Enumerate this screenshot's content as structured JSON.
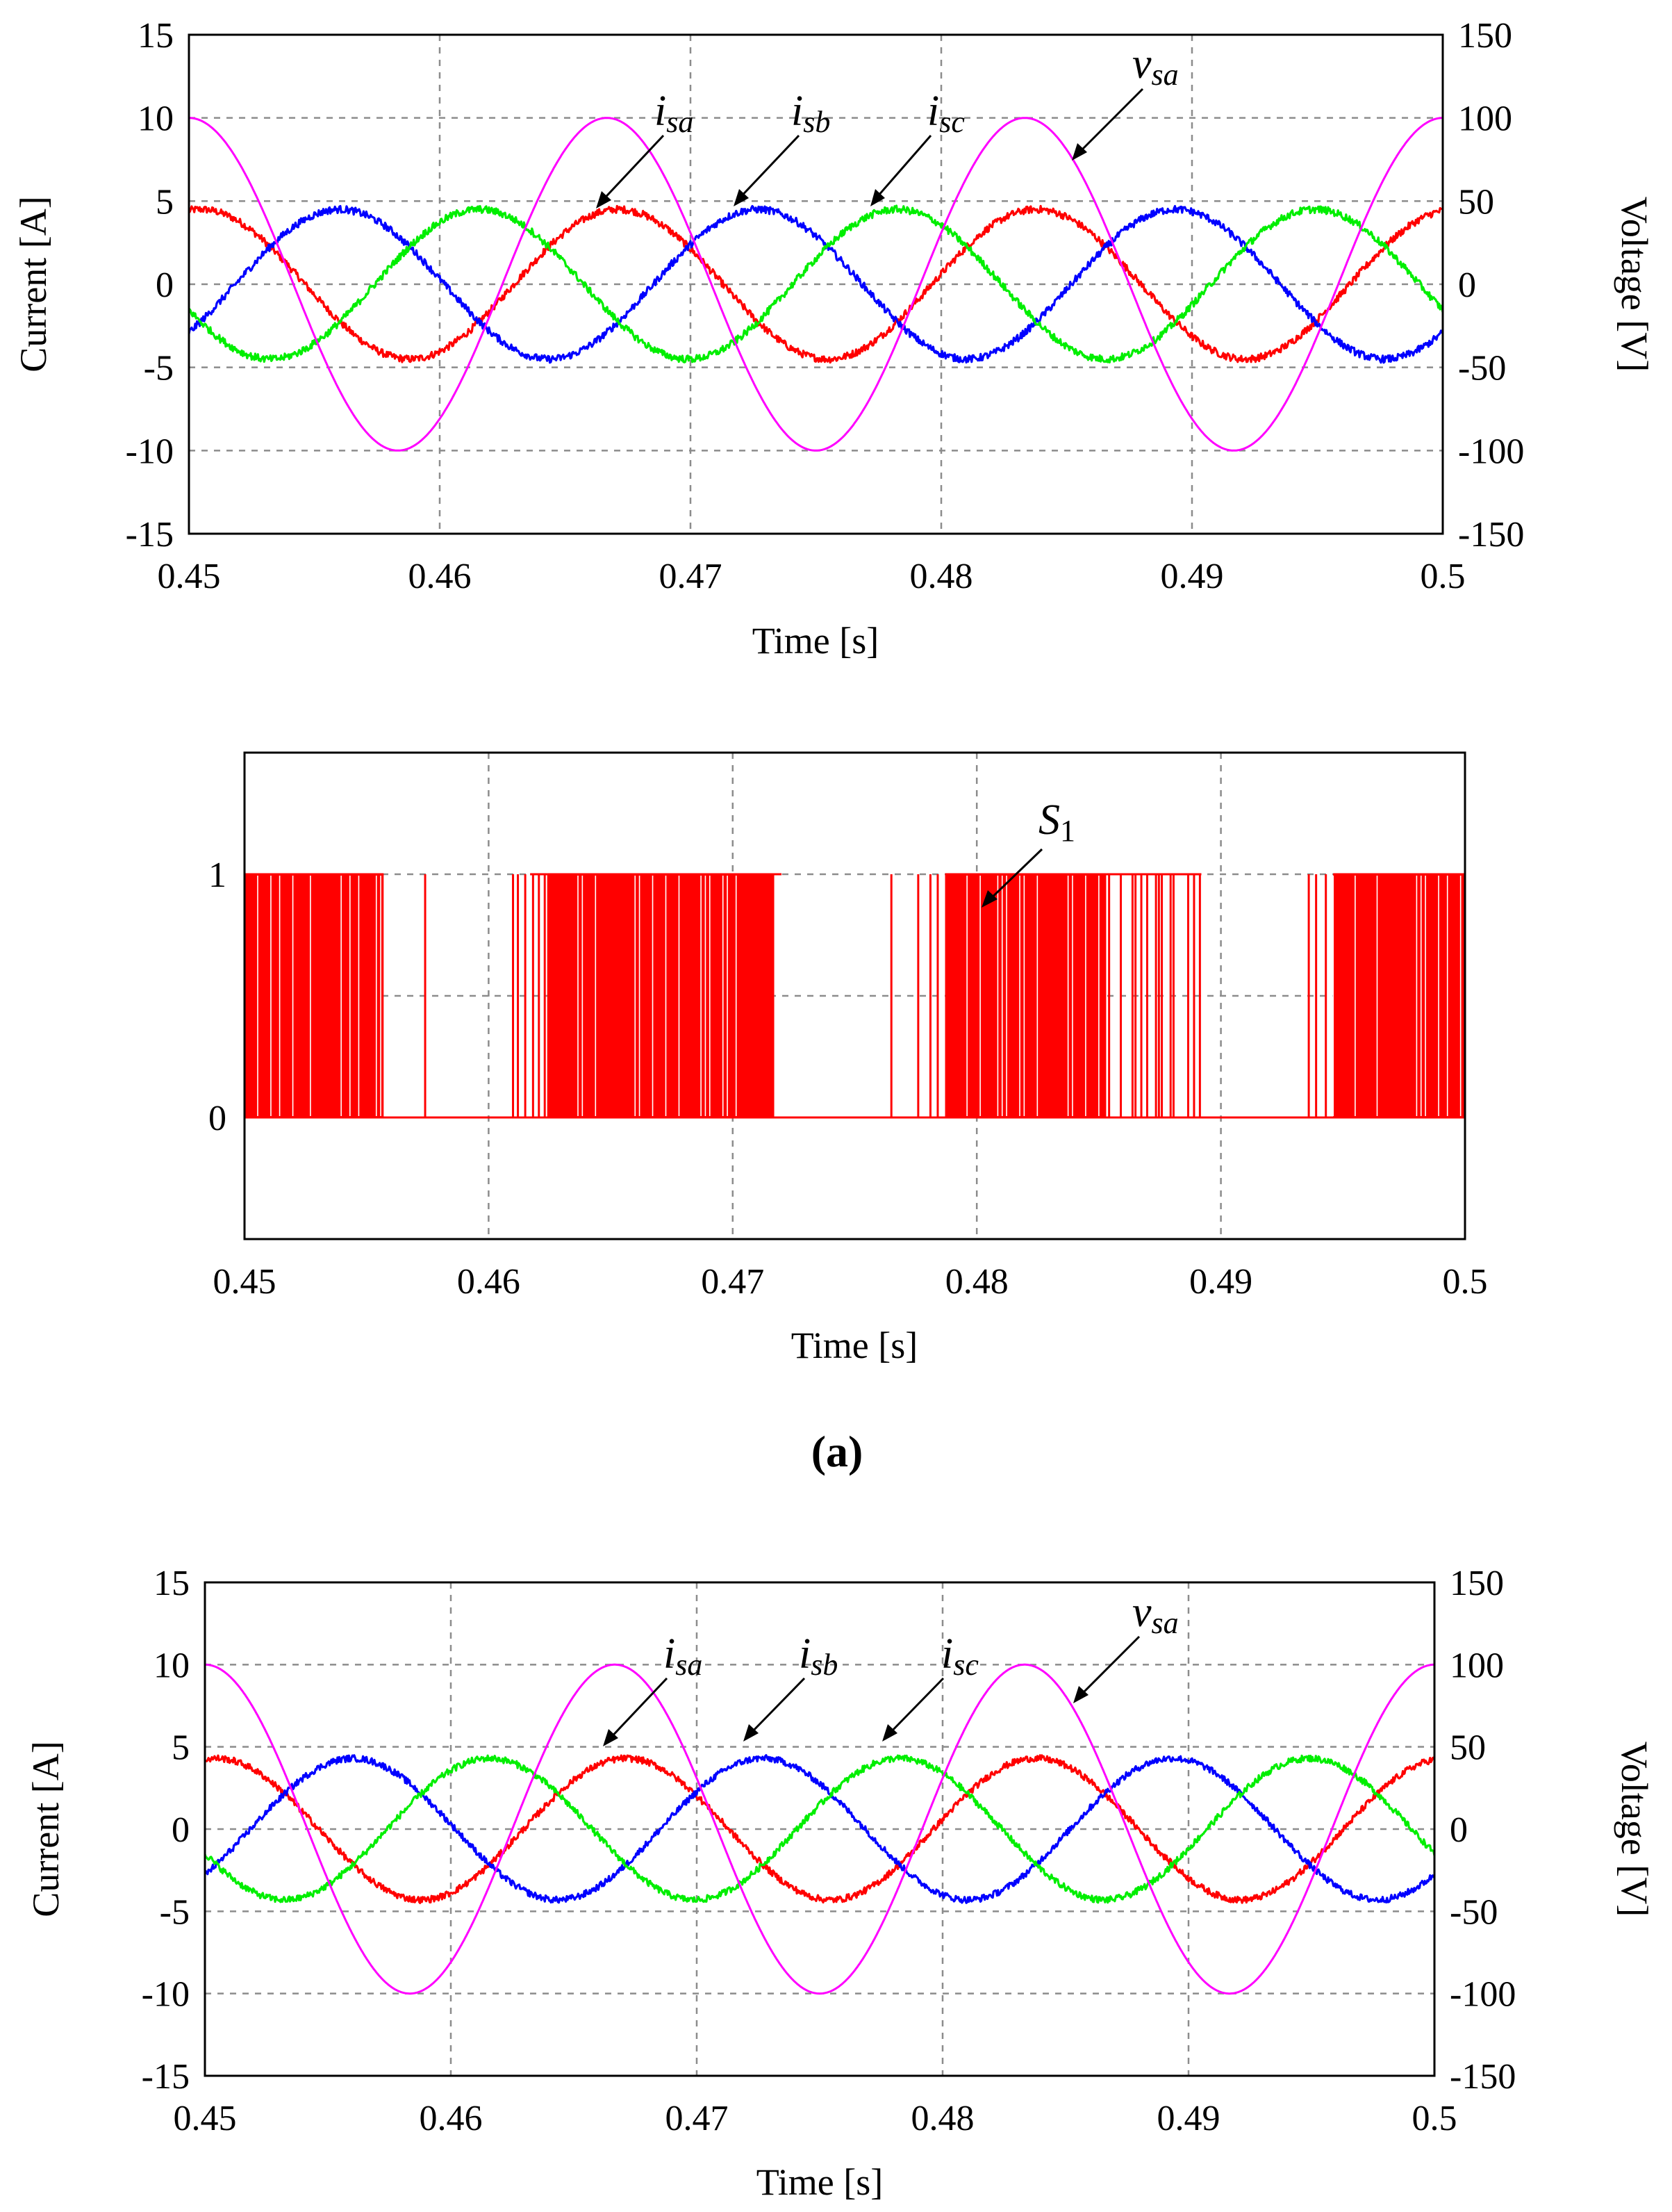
{
  "figure": {
    "subfigure_label": "(a)",
    "colors": {
      "isa": "#ff0000",
      "isb": "#0000ff",
      "isc": "#00ee00",
      "vsa": "#ff00ff",
      "s1": "#ff0000"
    }
  },
  "chart_data": [
    {
      "type": "line",
      "id": "top-currents",
      "xlabel": "Time [s]",
      "ylabel": "Current [A]",
      "y2label": "Voltage [V]",
      "xlim": [
        0.45,
        0.5
      ],
      "ylim": [
        -15,
        15
      ],
      "y2lim": [
        -150,
        150
      ],
      "x_ticks": [
        "0.45",
        "0.46",
        "0.47",
        "0.48",
        "0.49",
        "0.5"
      ],
      "y_ticks": [
        "15",
        "10",
        "5",
        "0",
        "-5",
        "-10",
        "-15"
      ],
      "y2_ticks": [
        "150",
        "100",
        "50",
        "0",
        "-50",
        "-100",
        "-150"
      ],
      "grid": true,
      "frequency_hz": 60,
      "series": [
        {
          "name": "isa",
          "base": "i",
          "sub": "sa",
          "axis": "left",
          "amplitude": 4.5,
          "phase_deg": -10,
          "noise": 0.22,
          "color_key": "isa"
        },
        {
          "name": "isb",
          "base": "i",
          "sub": "sb",
          "axis": "left",
          "amplitude": 4.5,
          "phase_deg": -130,
          "noise": 0.22,
          "color_key": "isb"
        },
        {
          "name": "isc",
          "base": "i",
          "sub": "sc",
          "axis": "left",
          "amplitude": 4.5,
          "phase_deg": 110,
          "noise": 0.22,
          "color_key": "isc"
        },
        {
          "name": "vsa",
          "base": "v",
          "sub": "sa",
          "axis": "right",
          "amplitude": 100,
          "phase_deg": 0,
          "noise": 0,
          "color_key": "vsa"
        }
      ]
    },
    {
      "type": "line",
      "id": "switching-signal",
      "xlabel": "Time [s]",
      "xlim": [
        0.45,
        0.5
      ],
      "ylim": [
        -0.5,
        1.5
      ],
      "x_ticks": [
        "0.45",
        "0.46",
        "0.47",
        "0.48",
        "0.49",
        "0.5"
      ],
      "y_ticks": [
        "1",
        "0"
      ],
      "grid": true,
      "series": [
        {
          "name": "S1",
          "base": "S",
          "sub": "1",
          "color_key": "s1",
          "dense_intervals": [
            [
              0.45,
              0.4557
            ],
            [
              0.4624,
              0.4717
            ],
            [
              0.4787,
              0.4853
            ],
            [
              0.4946,
              0.5
            ]
          ],
          "medium_intervals": [
            [
              0.4853,
              0.4892
            ],
            [
              0.4617,
              0.4624
            ],
            [
              0.4717,
              0.472
            ]
          ],
          "sparse_pulses": [
            0.4574,
            0.461,
            0.4612,
            0.4615,
            0.4765,
            0.4776,
            0.4781,
            0.4784,
            0.4936,
            0.4939,
            0.4943
          ]
        }
      ]
    },
    {
      "type": "line",
      "id": "bottom-currents",
      "xlabel": "Time [s]",
      "ylabel": "Current [A]",
      "y2label": "Voltage [V]",
      "xlim": [
        0.45,
        0.5
      ],
      "ylim": [
        -15,
        15
      ],
      "y2lim": [
        -150,
        150
      ],
      "x_ticks": [
        "0.45",
        "0.46",
        "0.47",
        "0.48",
        "0.49",
        "0.5"
      ],
      "y_ticks": [
        "15",
        "10",
        "5",
        "0",
        "-5",
        "-10",
        "-15"
      ],
      "y2_ticks": [
        "150",
        "100",
        "50",
        "0",
        "-50",
        "-100",
        "-150"
      ],
      "grid": true,
      "frequency_hz": 60,
      "series": [
        {
          "name": "isa",
          "base": "i",
          "sub": "sa",
          "axis": "left",
          "amplitude": 4.3,
          "phase_deg": -10,
          "noise": 0.2,
          "color_key": "isa"
        },
        {
          "name": "isb",
          "base": "i",
          "sub": "sb",
          "axis": "left",
          "amplitude": 4.3,
          "phase_deg": -130,
          "noise": 0.2,
          "color_key": "isb"
        },
        {
          "name": "isc",
          "base": "i",
          "sub": "sc",
          "axis": "left",
          "amplitude": 4.3,
          "phase_deg": 110,
          "noise": 0.2,
          "color_key": "isc"
        },
        {
          "name": "vsa",
          "base": "v",
          "sub": "sa",
          "axis": "right",
          "amplitude": 100,
          "phase_deg": 0,
          "noise": 0,
          "color_key": "vsa"
        }
      ]
    }
  ]
}
